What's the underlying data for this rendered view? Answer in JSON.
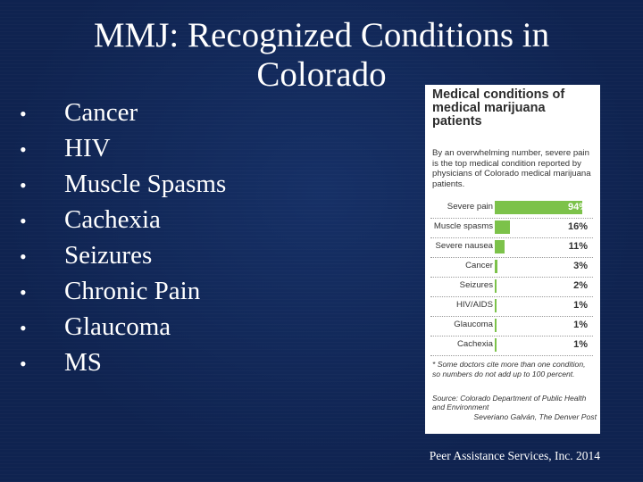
{
  "slide": {
    "title": "MMJ: Recognized Conditions in Colorado",
    "bullets": [
      "Cancer",
      "HIV",
      "Muscle Spasms",
      "Cachexia",
      "Seizures",
      "Chronic Pain",
      "Glaucoma",
      "MS"
    ],
    "footer": "Peer Assistance Services, Inc.   2014"
  },
  "figure": {
    "heading": "Medical conditions of medical marijuana patients",
    "intro": "By an overwhelming number, severe pain is the top medical condition reported by physicians of Colorado medical marijuana patients.",
    "rows": [
      {
        "label": "Severe pain",
        "value": 94,
        "display": "94%"
      },
      {
        "label": "Muscle spasms",
        "value": 16,
        "display": "16%"
      },
      {
        "label": "Severe nausea",
        "value": 11,
        "display": "11%"
      },
      {
        "label": "Cancer",
        "value": 3,
        "display": "3%"
      },
      {
        "label": "Seizures",
        "value": 2,
        "display": "2%"
      },
      {
        "label": "HIV/AIDS",
        "value": 1,
        "display": "1%"
      },
      {
        "label": "Glaucoma",
        "value": 1,
        "display": "1%"
      },
      {
        "label": "Cachexia",
        "value": 1,
        "display": "1%"
      }
    ],
    "note": "* Some doctors cite more than one condition, so numbers do not add up to 100 percent.",
    "source": "Source: Colorado Department of Public Health and Environment",
    "credit": "Severiano Galván, The Denver Post",
    "bar_color": "#7cc24a"
  }
}
